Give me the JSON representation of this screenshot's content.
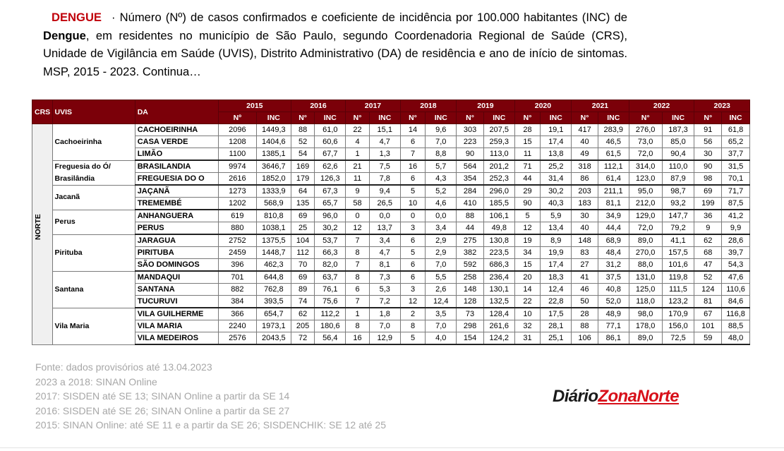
{
  "header": {
    "tag": "DENGUE",
    "lead": "· Número (Nº) de casos confirmados e coeficiente de incidência por 100.000 habitantes (INC) de ",
    "disease": "Dengue",
    "rest": ", em residentes no município de São Paulo, segundo Coordenadoria Regional de Saúde (CRS), Unidade de Vigilância em Saúde (UVIS), Distrito Administrativo (DA) de residência e ano de início de sintomas. MSP, 2015 - 2023. Continua…"
  },
  "table": {
    "col_crs": "CRS",
    "col_uvis": "UVIS",
    "col_da": "DA",
    "years": [
      {
        "year": "2015",
        "n": "Nº",
        "inc": "INC"
      },
      {
        "year": "2016",
        "n": "N°",
        "inc": "INC"
      },
      {
        "year": "2017",
        "n": "N°",
        "inc": "INC"
      },
      {
        "year": "2018",
        "n": "N°",
        "inc": "INC"
      },
      {
        "year": "2019",
        "n": "N°",
        "inc": "INC"
      },
      {
        "year": "2020",
        "n": "N°",
        "inc": "INC"
      },
      {
        "year": "2021",
        "n": "N°",
        "inc": "INC"
      },
      {
        "year": "2022",
        "n": "N°",
        "inc": "INC"
      },
      {
        "year": "2023",
        "n": "N°",
        "inc": "INC"
      }
    ],
    "crs": "NORTE",
    "groups": [
      {
        "uvis": "Cachoeirinha",
        "rows": [
          {
            "da": "CACHOEIRINHA",
            "v": [
              "2096",
              "1449,3",
              "88",
              "61,0",
              "22",
              "15,1",
              "14",
              "9,6",
              "303",
              "207,5",
              "28",
              "19,1",
              "417",
              "283,9",
              "276,0",
              "187,3",
              "91",
              "61,8"
            ]
          },
          {
            "da": "CASA VERDE",
            "v": [
              "1208",
              "1404,6",
              "52",
              "60,6",
              "4",
              "4,7",
              "6",
              "7,0",
              "223",
              "259,3",
              "15",
              "17,4",
              "40",
              "46,5",
              "73,0",
              "85,0",
              "56",
              "65,2"
            ]
          },
          {
            "da": "LIMÃO",
            "v": [
              "1100",
              "1385,1",
              "54",
              "67,7",
              "1",
              "1,3",
              "7",
              "8,8",
              "90",
              "113,0",
              "11",
              "13,8",
              "49",
              "61,5",
              "72,0",
              "90,4",
              "30",
              "37,7"
            ]
          }
        ]
      },
      {
        "uvis": "Freguesia do Ó/ Brasilândia",
        "rows": [
          {
            "da": "BRASILANDIA",
            "v": [
              "9974",
              "3646,7",
              "169",
              "62,6",
              "21",
              "7,5",
              "16",
              "5,7",
              "564",
              "201,2",
              "71",
              "25,2",
              "318",
              "112,1",
              "314,0",
              "110,0",
              "90",
              "31,5"
            ]
          },
          {
            "da": "FREGUESIA DO O",
            "v": [
              "2616",
              "1852,0",
              "179",
              "126,3",
              "11",
              "7,8",
              "6",
              "4,3",
              "354",
              "252,3",
              "44",
              "31,4",
              "86",
              "61,4",
              "123,0",
              "87,9",
              "98",
              "70,1"
            ]
          }
        ]
      },
      {
        "uvis": "Jacanã",
        "rows": [
          {
            "da": "JAÇANÃ",
            "v": [
              "1273",
              "1333,9",
              "64",
              "67,3",
              "9",
              "9,4",
              "5",
              "5,2",
              "284",
              "296,0",
              "29",
              "30,2",
              "203",
              "211,1",
              "95,0",
              "98,7",
              "69",
              "71,7"
            ]
          },
          {
            "da": "TREMEMBÉ",
            "v": [
              "1202",
              "568,9",
              "135",
              "65,7",
              "58",
              "26,5",
              "10",
              "4,6",
              "410",
              "185,5",
              "90",
              "40,3",
              "183",
              "81,1",
              "212,0",
              "93,2",
              "199",
              "87,5"
            ]
          }
        ]
      },
      {
        "uvis": "Perus",
        "rows": [
          {
            "da": "ANHANGUERA",
            "v": [
              "619",
              "810,8",
              "69",
              "96,0",
              "0",
              "0,0",
              "0",
              "0,0",
              "88",
              "106,1",
              "5",
              "5,9",
              "30",
              "34,9",
              "129,0",
              "147,7",
              "36",
              "41,2"
            ]
          },
          {
            "da": "PERUS",
            "v": [
              "880",
              "1038,1",
              "25",
              "30,2",
              "12",
              "13,7",
              "3",
              "3,4",
              "44",
              "49,8",
              "12",
              "13,4",
              "40",
              "44,4",
              "72,0",
              "79,2",
              "9",
              "9,9"
            ]
          }
        ]
      },
      {
        "uvis": "Pirituba",
        "rows": [
          {
            "da": "JARAGUA",
            "v": [
              "2752",
              "1375,5",
              "104",
              "53,7",
              "7",
              "3,4",
              "6",
              "2,9",
              "275",
              "130,8",
              "19",
              "8,9",
              "148",
              "68,9",
              "89,0",
              "41,1",
              "62",
              "28,6"
            ]
          },
          {
            "da": "PIRITUBA",
            "v": [
              "2459",
              "1448,7",
              "112",
              "66,3",
              "8",
              "4,7",
              "5",
              "2,9",
              "382",
              "223,5",
              "34",
              "19,9",
              "83",
              "48,4",
              "270,0",
              "157,5",
              "68",
              "39,7"
            ]
          },
          {
            "da": "SÃO DOMINGOS",
            "v": [
              "396",
              "462,3",
              "70",
              "82,0",
              "7",
              "8,1",
              "6",
              "7,0",
              "592",
              "686,3",
              "15",
              "17,4",
              "27",
              "31,2",
              "88,0",
              "101,6",
              "47",
              "54,3"
            ]
          }
        ]
      },
      {
        "uvis": "Santana",
        "rows": [
          {
            "da": "MANDAQUI",
            "v": [
              "701",
              "644,8",
              "69",
              "63,7",
              "8",
              "7,3",
              "6",
              "5,5",
              "258",
              "236,4",
              "20",
              "18,3",
              "41",
              "37,5",
              "131,0",
              "119,8",
              "52",
              "47,6"
            ]
          },
          {
            "da": "SANTANA",
            "v": [
              "882",
              "762,8",
              "89",
              "76,1",
              "6",
              "5,3",
              "3",
              "2,6",
              "148",
              "130,1",
              "14",
              "12,4",
              "46",
              "40,8",
              "125,0",
              "111,5",
              "124",
              "110,6"
            ]
          },
          {
            "da": "TUCURUVI",
            "v": [
              "384",
              "393,5",
              "74",
              "75,6",
              "7",
              "7,2",
              "12",
              "12,4",
              "128",
              "132,5",
              "22",
              "22,8",
              "50",
              "52,0",
              "118,0",
              "123,2",
              "81",
              "84,6"
            ]
          }
        ]
      },
      {
        "uvis": "Vila Maria",
        "rows": [
          {
            "da": "VILA GUILHERME",
            "v": [
              "366",
              "654,7",
              "62",
              "112,2",
              "1",
              "1,8",
              "2",
              "3,5",
              "73",
              "128,4",
              "10",
              "17,5",
              "28",
              "48,9",
              "98,0",
              "170,9",
              "67",
              "116,8"
            ]
          },
          {
            "da": "VILA MARIA",
            "v": [
              "2240",
              "1973,1",
              "205",
              "180,6",
              "8",
              "7,0",
              "8",
              "7,0",
              "298",
              "261,6",
              "32",
              "28,1",
              "88",
              "77,1",
              "178,0",
              "156,0",
              "101",
              "88,5"
            ]
          },
          {
            "da": "VILA MEDEIROS",
            "v": [
              "2576",
              "2043,5",
              "72",
              "56,4",
              "16",
              "12,9",
              "5",
              "4,0",
              "154",
              "124,2",
              "31",
              "25,1",
              "106",
              "86,1",
              "89,0",
              "72,5",
              "59",
              "48,0"
            ]
          }
        ]
      }
    ]
  },
  "footnotes": [
    "Fonte: dados provisórios até 13.04.2023",
    "2023 a 2018: SINAN Online",
    "2017: SISDEN até SE 13; SINAN Online a partir da SE 14",
    "2016: SISDEN até SE 26; SINAN Online a partir da SE 27",
    "2015: SINAN Online: até SE 11 e a partir da SE 26; SISDENCHIK: SE 12 até 25"
  ],
  "brand": {
    "part1": "Diário",
    "part2": "ZonaNorte"
  }
}
